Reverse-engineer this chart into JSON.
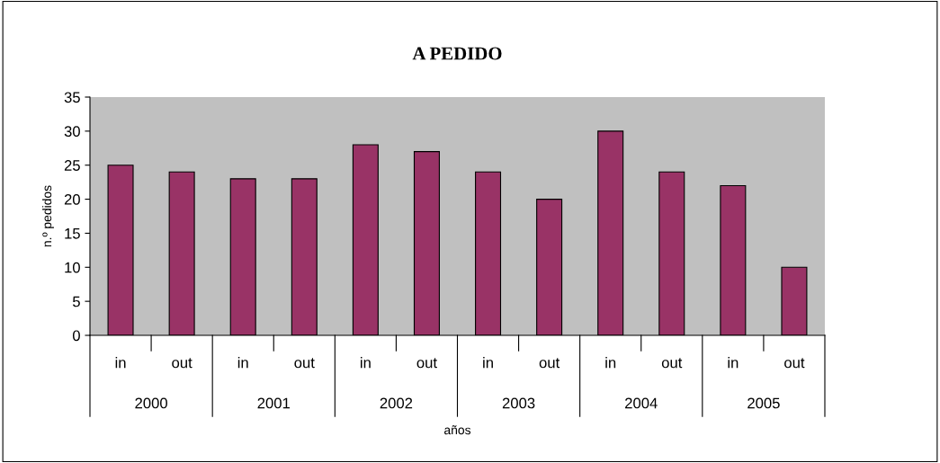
{
  "chart_data": {
    "type": "bar",
    "title": "A PEDIDO",
    "xlabel": "años",
    "ylabel": "n.º pedidos",
    "categories": [
      "in",
      "out",
      "in",
      "out",
      "in",
      "out",
      "in",
      "out",
      "in",
      "out",
      "in",
      "out"
    ],
    "values": [
      25,
      24,
      23,
      23,
      28,
      27,
      24,
      20,
      30,
      24,
      22,
      10
    ],
    "color": "#993366",
    "ylim": [
      0,
      35
    ],
    "yticks": [
      0,
      5,
      10,
      15,
      20,
      25,
      30,
      35
    ],
    "grid": false,
    "annotations": [
      "2000",
      "2001",
      "2002",
      "2003",
      "2004",
      "2005"
    ]
  }
}
